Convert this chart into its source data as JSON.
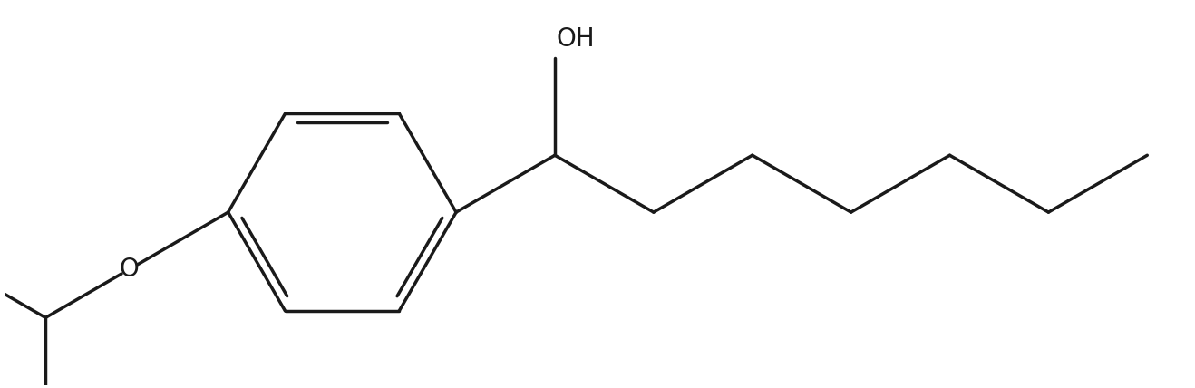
{
  "line_color": "#1a1a1a",
  "line_width": 2.5,
  "bg_color": "#ffffff",
  "font_size": 20,
  "figsize": [
    13.18,
    4.28
  ],
  "dpi": 100,
  "xlim": [
    0.5,
    13.5
  ],
  "ylim": [
    0.3,
    4.5
  ]
}
